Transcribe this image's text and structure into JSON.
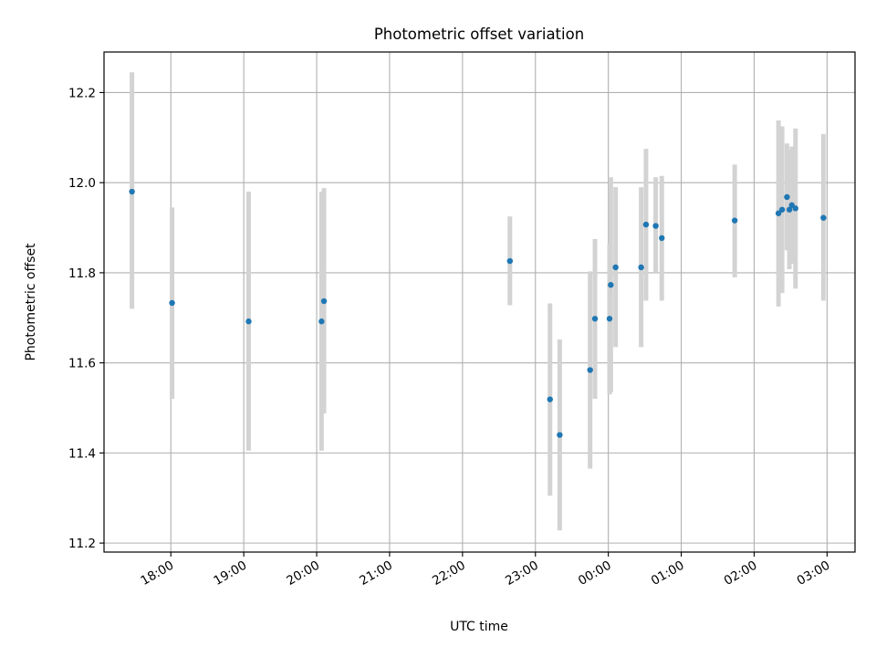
{
  "chart_data": {
    "type": "scatter",
    "title": "Photometric offset variation",
    "xlabel": "UTC time",
    "ylabel": "Photometric offset",
    "x_tick_labels": [
      "18:00",
      "19:00",
      "20:00",
      "21:00",
      "22:00",
      "23:00",
      "00:00",
      "01:00",
      "02:00",
      "03:00"
    ],
    "y_tick_labels": [
      "11.2",
      "11.4",
      "11.6",
      "11.8",
      "12.0",
      "12.2"
    ],
    "y_ticks": [
      11.2,
      11.4,
      11.6,
      11.8,
      12.0,
      12.2
    ],
    "xlim": [
      "17:05",
      "03:23"
    ],
    "ylim": [
      11.18,
      12.29
    ],
    "grid": true,
    "point_color": "#1f77b4",
    "errorbar_color": "#d3d3d3",
    "points": [
      {
        "t": "17:28",
        "y": 11.98,
        "lo": 11.72,
        "hi": 12.245
      },
      {
        "t": "18:01",
        "y": 11.733,
        "lo": 11.52,
        "hi": 11.945
      },
      {
        "t": "19:04",
        "y": 11.692,
        "lo": 11.405,
        "hi": 11.98
      },
      {
        "t": "20:04",
        "y": 11.692,
        "lo": 11.405,
        "hi": 11.98
      },
      {
        "t": "20:06",
        "y": 11.737,
        "lo": 11.488,
        "hi": 11.988
      },
      {
        "t": "22:39",
        "y": 11.826,
        "lo": 11.728,
        "hi": 11.925
      },
      {
        "t": "23:12",
        "y": 11.519,
        "lo": 11.305,
        "hi": 11.732
      },
      {
        "t": "23:20",
        "y": 11.44,
        "lo": 11.228,
        "hi": 11.652
      },
      {
        "t": "23:45",
        "y": 11.584,
        "lo": 11.365,
        "hi": 11.803
      },
      {
        "t": "23:49",
        "y": 11.698,
        "lo": 11.52,
        "hi": 11.875
      },
      {
        "t": "00:01",
        "y": 11.698,
        "lo": 11.53,
        "hi": 11.865
      },
      {
        "t": "00:02",
        "y": 11.773,
        "lo": 11.535,
        "hi": 12.012
      },
      {
        "t": "00:06",
        "y": 11.812,
        "lo": 11.635,
        "hi": 11.99
      },
      {
        "t": "00:27",
        "y": 11.812,
        "lo": 11.635,
        "hi": 11.99
      },
      {
        "t": "00:31",
        "y": 11.907,
        "lo": 11.738,
        "hi": 12.075
      },
      {
        "t": "00:39",
        "y": 11.904,
        "lo": 11.8,
        "hi": 12.012
      },
      {
        "t": "00:44",
        "y": 11.877,
        "lo": 11.738,
        "hi": 12.015
      },
      {
        "t": "01:44",
        "y": 11.916,
        "lo": 11.79,
        "hi": 12.04
      },
      {
        "t": "02:20",
        "y": 11.932,
        "lo": 11.725,
        "hi": 12.138
      },
      {
        "t": "02:23",
        "y": 11.94,
        "lo": 11.755,
        "hi": 12.125
      },
      {
        "t": "02:27",
        "y": 11.968,
        "lo": 11.85,
        "hi": 12.087
      },
      {
        "t": "02:29",
        "y": 11.94,
        "lo": 11.808,
        "hi": 12.072
      },
      {
        "t": "02:31",
        "y": 11.95,
        "lo": 11.82,
        "hi": 12.08
      },
      {
        "t": "02:34",
        "y": 11.943,
        "lo": 11.765,
        "hi": 12.12
      },
      {
        "t": "02:57",
        "y": 11.922,
        "lo": 11.738,
        "hi": 12.108
      }
    ]
  }
}
